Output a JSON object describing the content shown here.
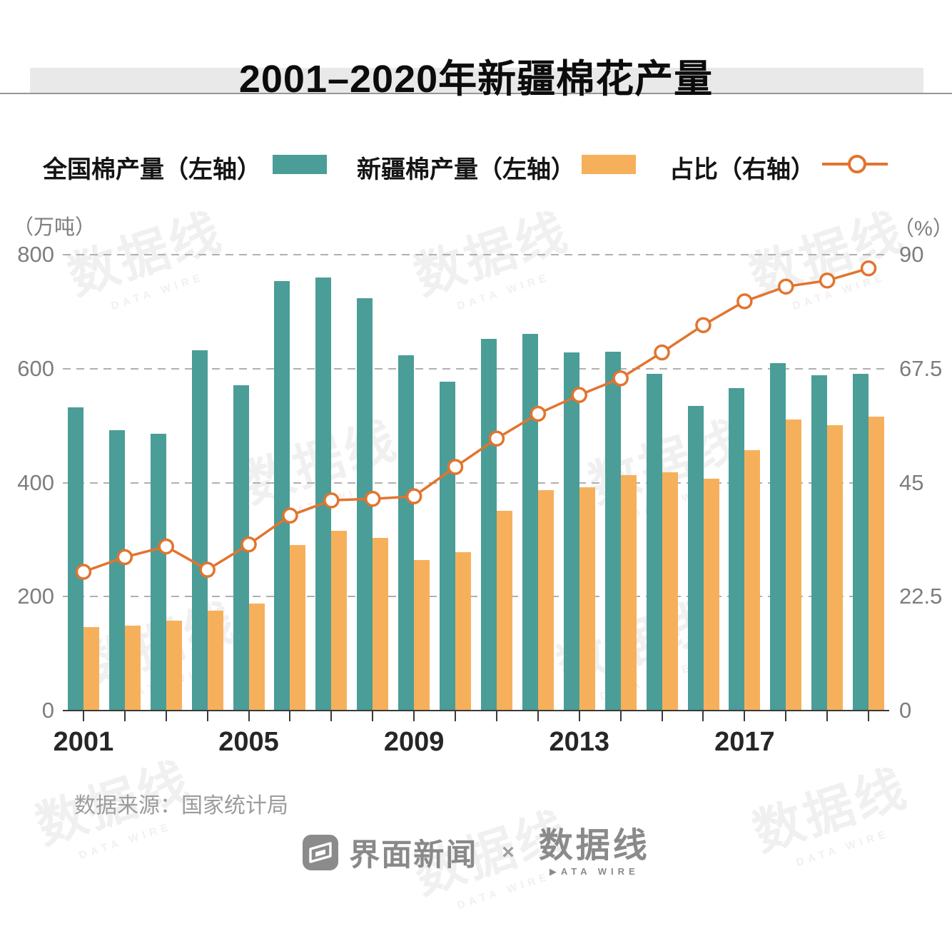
{
  "title": "2001–2020年新疆棉花产量",
  "legend": {
    "items": [
      {
        "label": "全国棉产量（左轴）",
        "swatch": "bar",
        "color": "#4b9d97"
      },
      {
        "label": "新疆棉产量（左轴）",
        "swatch": "bar",
        "color": "#f6b05b"
      },
      {
        "label": "占比（右轴）",
        "swatch": "line-marker",
        "color": "#e2742e"
      }
    ]
  },
  "chart_data": {
    "type": "bar",
    "categories": [
      "2001",
      "2002",
      "2003",
      "2004",
      "2005",
      "2006",
      "2007",
      "2008",
      "2009",
      "2010",
      "2011",
      "2012",
      "2013",
      "2014",
      "2015",
      "2016",
      "2017",
      "2018",
      "2019",
      "2020"
    ],
    "series": [
      {
        "name": "全国棉产量（左轴）",
        "type": "bar",
        "axis": "left",
        "color": "#4b9d97",
        "values": [
          532.4,
          491.6,
          486.0,
          632.4,
          571.4,
          753.3,
          759.7,
          723.2,
          623.6,
          577.0,
          651.9,
          660.8,
          628.2,
          629.9,
          590.7,
          534.3,
          565.3,
          610.3,
          588.9,
          591.0
        ]
      },
      {
        "name": "新疆棉产量（左轴）",
        "type": "bar",
        "axis": "left",
        "color": "#f6b05b",
        "values": [
          145.9,
          149.0,
          157.7,
          175.5,
          187.7,
          290.1,
          315.1,
          302.6,
          263.6,
          277.5,
          350.2,
          387.0,
          391.3,
          413.0,
          417.7,
          406.5,
          456.6,
          511.1,
          500.2,
          516.1
        ]
      },
      {
        "name": "占比（右轴）",
        "type": "line",
        "axis": "right",
        "color": "#e2742e",
        "values": [
          27.4,
          30.3,
          32.4,
          27.8,
          32.8,
          38.5,
          41.5,
          41.8,
          42.3,
          48.1,
          53.7,
          58.6,
          62.3,
          65.6,
          70.7,
          76.1,
          80.8,
          83.7,
          84.9,
          87.3
        ]
      }
    ],
    "left_axis": {
      "unit": "（万吨）",
      "min": 0,
      "max": 800,
      "ticks": [
        "800",
        "600",
        "400",
        "200",
        "0"
      ]
    },
    "right_axis": {
      "unit": "（%）",
      "min": 0,
      "max": 90,
      "ticks": [
        "90",
        "67.5",
        "45",
        "22.5",
        "0"
      ]
    },
    "x_axis": {
      "labeled_years": [
        "2001",
        "2005",
        "2009",
        "2013",
        "2017"
      ],
      "label_indices": [
        0,
        4,
        8,
        12,
        16
      ]
    },
    "grid": "horizontal-dashed",
    "legend_position": "top"
  },
  "source": "数据来源：国家统计局",
  "footer": {
    "brand1": "界面新闻",
    "separator": "×",
    "brand2": "数据线",
    "brand2_tagline": "▶ATA WIRE"
  },
  "watermark": {
    "text": "数据线",
    "tagline": "DATA WIRE"
  }
}
